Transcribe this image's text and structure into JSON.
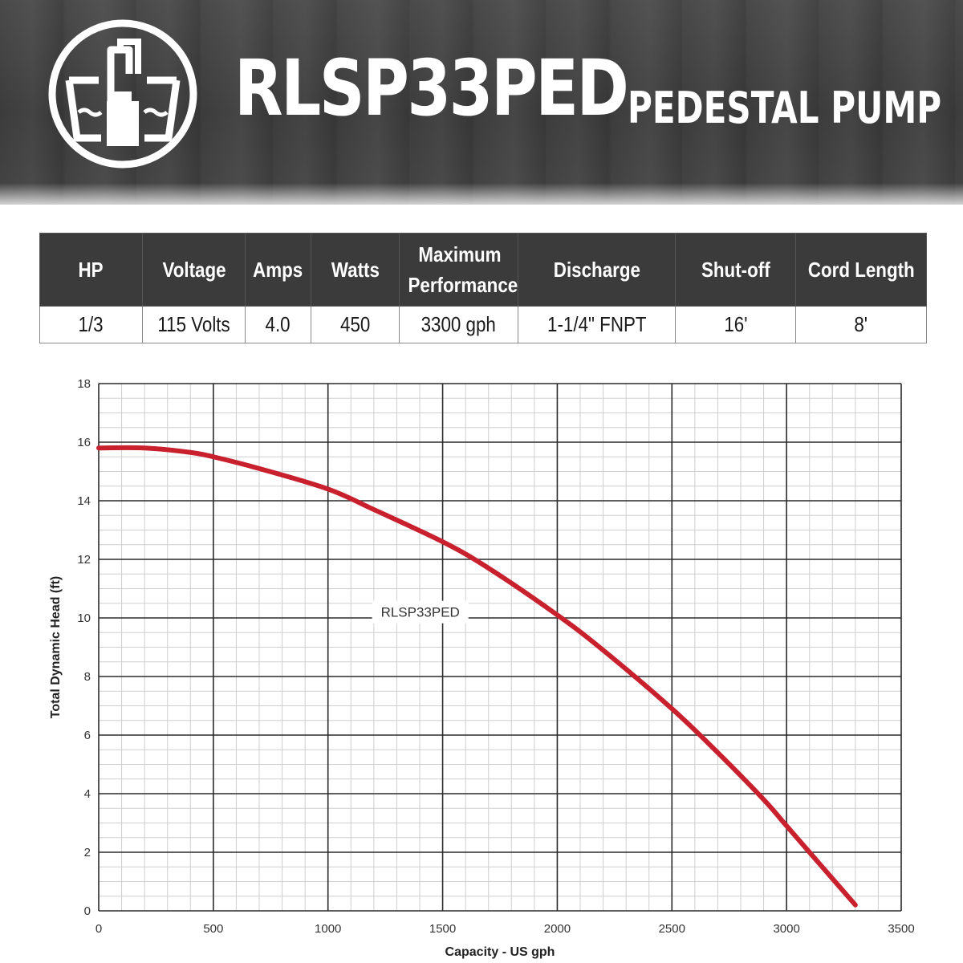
{
  "header": {
    "title": "RLSP33PED",
    "subtitle": "PEDESTAL PUMP",
    "logo_icon": "pedestal-pump-logo-icon"
  },
  "spec_table": {
    "headers": [
      "HP",
      "Voltage",
      "Amps",
      "Watts",
      "Maximum Performance",
      "Discharge",
      "Shut-off",
      "Cord Length"
    ],
    "values": [
      "1/3",
      "115 Volts",
      "4.0",
      "450",
      "3300 gph",
      "1-1/4\" FNPT",
      "16'",
      "8'"
    ]
  },
  "colors": {
    "banner": "#404040",
    "table_header": "#3b3b3b",
    "curve": "#c8202d",
    "grid_major": "#2a2a2a",
    "grid_minor": "#cfcfcf"
  },
  "chart_data": {
    "type": "line",
    "title": "",
    "xlabel": "Capacity  - US gph",
    "ylabel": "Total Dynamic Head (ft)",
    "xlim": [
      0,
      3500
    ],
    "ylim": [
      0,
      18
    ],
    "xticks": [
      0,
      500,
      1000,
      1500,
      2000,
      2500,
      3000,
      3500
    ],
    "yticks": [
      0,
      2,
      4,
      6,
      8,
      10,
      12,
      14,
      16,
      18
    ],
    "grid": true,
    "series": [
      {
        "name": "RLSP33PED",
        "x": [
          0,
          200,
          400,
          500,
          700,
          1000,
          1200,
          1500,
          1700,
          2000,
          2200,
          2500,
          2700,
          2900,
          3000,
          3100,
          3200,
          3300
        ],
        "y": [
          15.8,
          15.8,
          15.65,
          15.5,
          15.1,
          14.4,
          13.7,
          12.6,
          11.7,
          10.1,
          8.9,
          6.9,
          5.4,
          3.8,
          2.9,
          2.0,
          1.1,
          0.2
        ]
      }
    ],
    "annotations": [
      {
        "text": "RLSP33PED",
        "x": 1700,
        "y": 10.2
      }
    ]
  }
}
